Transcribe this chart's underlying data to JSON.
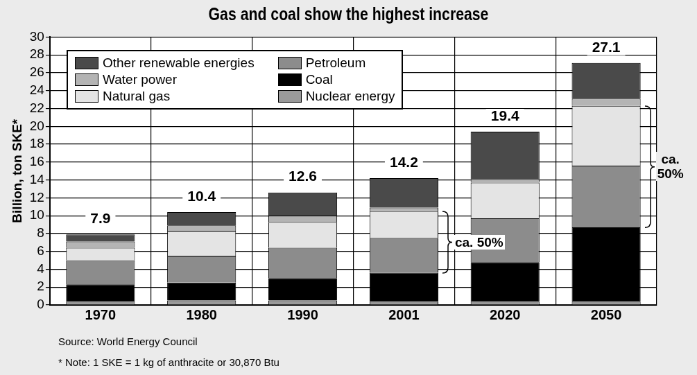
{
  "chart_data": {
    "type": "bar",
    "title": "Gas and coal show the highest increase",
    "ylabel": "Billion, ton SKE*",
    "categories": [
      "1970",
      "1980",
      "1990",
      "2001",
      "2020",
      "2050"
    ],
    "stacked": true,
    "series": [
      {
        "name": "Nuclear energy",
        "color": "#9a9a9a",
        "values": [
          0.4,
          0.5,
          0.5,
          0.4,
          0.4,
          0.4
        ]
      },
      {
        "name": "Coal",
        "color": "#000000",
        "values": [
          1.9,
          2.0,
          2.5,
          3.2,
          4.4,
          8.3
        ]
      },
      {
        "name": "Petroleum",
        "color": "#8c8c8c",
        "values": [
          2.7,
          3.0,
          3.4,
          3.9,
          4.9,
          6.9
        ]
      },
      {
        "name": "Natural gas",
        "color": "#e4e4e4",
        "values": [
          1.4,
          2.8,
          2.9,
          3.0,
          4.0,
          6.7
        ]
      },
      {
        "name": "Water power",
        "color": "#b4b4b4",
        "values": [
          0.7,
          0.6,
          0.7,
          0.4,
          0.4,
          0.8
        ]
      },
      {
        "name": "Other renewable energies",
        "color": "#4a4a4a",
        "values": [
          0.8,
          1.5,
          2.6,
          3.3,
          5.3,
          4.0
        ]
      }
    ],
    "totals": [
      "7.9",
      "10.4",
      "12.6",
      "14.2",
      "19.4",
      "27.1"
    ],
    "ylim": [
      0,
      30
    ],
    "yticks": [
      0,
      2,
      4,
      6,
      8,
      10,
      12,
      14,
      16,
      18,
      20,
      22,
      24,
      26,
      28,
      30
    ],
    "grid": true,
    "legend": "top left",
    "annotations": [
      "ca. 50%",
      "ca. 50%",
      "Source: World Energy Council",
      "* Note: 1 SKE = 1 kg of anthracite or 30,870 Btu"
    ]
  }
}
